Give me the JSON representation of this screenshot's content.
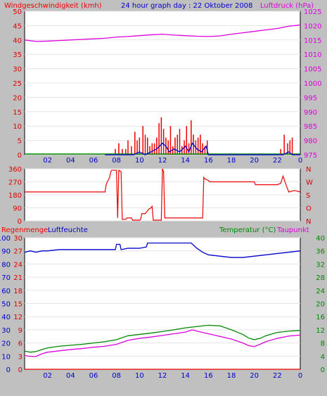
{
  "header": {
    "left_title": "Windgeschwindigkeit (kmh)",
    "center_title": "24 hour graph day : 22 Oktober 2008",
    "right_title": "Luftdruck (hPa)"
  },
  "panel3_labels": {
    "rain": "Regenmenge",
    "humidity": "Luftfeuchte",
    "temperature": "Temperatur (°C)",
    "dewpoint": "Taupunkt"
  },
  "colors": {
    "background": "#c0c0c0",
    "plot_bg": "#ffffff",
    "wind": "#ee0000",
    "gust_avg": "#0000cc",
    "pressure": "#dd00dd",
    "humidity": "#0000cc",
    "temperature": "#008800",
    "dewpoint": "#dd00dd",
    "rain": "#ee0000"
  },
  "chart_data": [
    {
      "type": "bar",
      "name": "wind-pressure",
      "x_ticks": [
        "02",
        "04",
        "06",
        "08",
        "10",
        "12",
        "14",
        "16",
        "18",
        "20",
        "22",
        "0"
      ],
      "x_range": [
        0,
        24
      ],
      "left_axis": {
        "label": "Windgeschwindigkeit (kmh)",
        "range": [
          0,
          50
        ],
        "ticks": [
          0,
          5,
          10,
          15,
          20,
          25,
          30,
          35,
          40,
          45,
          50
        ]
      },
      "right_axis": {
        "label": "Luftdruck (hPa)",
        "range": [
          975,
          1025
        ],
        "ticks": [
          975,
          980,
          985,
          990,
          995,
          1000,
          1005,
          1010,
          1015,
          1020,
          1025
        ]
      },
      "wind_gust": {
        "x": [
          7.9,
          8.2,
          8.5,
          8.8,
          9.0,
          9.3,
          9.6,
          9.8,
          10.0,
          10.3,
          10.5,
          10.7,
          10.9,
          11.1,
          11.3,
          11.5,
          11.7,
          11.9,
          12.1,
          12.3,
          12.5,
          12.7,
          12.9,
          13.1,
          13.3,
          13.5,
          13.7,
          13.9,
          14.1,
          14.3,
          14.5,
          14.7,
          14.9,
          15.1,
          15.3,
          15.5,
          15.7,
          15.9,
          22.3,
          22.6,
          22.9,
          23.1,
          23.3
        ],
        "values": [
          2,
          4,
          2,
          2,
          5,
          3,
          8,
          5,
          6,
          10,
          7,
          6,
          3,
          4,
          4,
          6,
          11,
          13,
          9,
          6,
          5,
          10,
          3,
          6,
          7,
          9,
          3,
          5,
          10,
          4,
          12,
          7,
          5,
          6,
          7,
          4,
          3,
          5,
          2,
          7,
          4,
          5,
          6
        ]
      },
      "wind_average": {
        "x": [
          7.0,
          9.5,
          10.0,
          10.5,
          11.0,
          11.5,
          12.0,
          12.3,
          12.6,
          13.0,
          13.5,
          14.0,
          14.3,
          14.6,
          15.0,
          15.4,
          15.8,
          16.0,
          22.5,
          23.0,
          23.3,
          24.0
        ],
        "values": [
          0,
          0,
          1,
          0,
          1,
          2,
          4,
          3,
          1,
          2,
          1,
          3,
          1,
          4,
          2,
          1,
          3,
          0,
          0,
          1,
          0,
          0
        ]
      },
      "pressure": {
        "x": [
          0,
          1,
          2,
          3,
          4,
          5,
          6,
          7,
          8,
          9,
          10,
          11,
          12,
          13,
          14,
          15,
          16,
          17,
          18,
          19,
          20,
          21,
          22,
          23,
          24
        ],
        "values": [
          1015,
          1014.5,
          1014.6,
          1014.8,
          1015,
          1015.2,
          1015.4,
          1015.6,
          1016,
          1016.2,
          1016.5,
          1016.8,
          1017,
          1016.7,
          1016.5,
          1016.3,
          1016.2,
          1016.4,
          1017,
          1017.5,
          1018,
          1018.5,
          1019,
          1019.8,
          1020.2
        ]
      }
    },
    {
      "type": "line",
      "name": "wind-direction",
      "x_range": [
        0,
        24
      ],
      "left_axis": {
        "range": [
          0,
          360
        ],
        "ticks": [
          0,
          90,
          180,
          270,
          360
        ]
      },
      "right_axis": {
        "ticks": [
          "N",
          "O",
          "S",
          "W",
          "N"
        ]
      },
      "direction": {
        "x": [
          0,
          7.0,
          7.1,
          7.2,
          7.4,
          7.5,
          7.6,
          8.0,
          8.1,
          8.2,
          8.4,
          8.5,
          8.8,
          8.9,
          9.3,
          9.4,
          10.0,
          10.1,
          10.2,
          10.5,
          10.8,
          11.0,
          11.1,
          11.2,
          11.9,
          12.0,
          12.1,
          12.2,
          12.3,
          15.5,
          15.6,
          15.7,
          16.0,
          16.1,
          20.0,
          20.1,
          22.0,
          22.3,
          22.5,
          22.8,
          23.0,
          23.5,
          24.0
        ],
        "values": [
          200,
          200,
          250,
          270,
          300,
          340,
          350,
          350,
          20,
          350,
          340,
          10,
          10,
          20,
          20,
          5,
          5,
          10,
          50,
          50,
          80,
          90,
          100,
          5,
          5,
          360,
          340,
          20,
          20,
          20,
          300,
          290,
          280,
          270,
          270,
          250,
          250,
          260,
          310,
          240,
          200,
          210,
          200
        ]
      }
    },
    {
      "type": "line",
      "name": "humidity-temperature",
      "x_range": [
        0,
        24
      ],
      "axis_rain": {
        "label": "Regenmenge",
        "range": [
          0,
          30
        ],
        "ticks": [
          0,
          3,
          6,
          9,
          12,
          15,
          18,
          21,
          24,
          27,
          30
        ]
      },
      "axis_humidity": {
        "label": "Luftfeuchte",
        "range": [
          0,
          100
        ],
        "ticks": [
          0,
          10,
          20,
          30,
          40,
          50,
          60,
          70,
          80,
          90,
          100
        ]
      },
      "axis_temperature": {
        "label": "Temperatur (°C) Taupunkt",
        "range": [
          0,
          40
        ],
        "ticks": [
          0,
          4,
          8,
          12,
          16,
          20,
          24,
          28,
          32,
          36,
          40
        ]
      },
      "rain": {
        "x": [
          0,
          24
        ],
        "values": [
          0,
          0
        ]
      },
      "humidity": {
        "x": [
          0,
          0.5,
          1.0,
          1.5,
          2.0,
          3.0,
          4.0,
          5.0,
          6.0,
          7.0,
          7.9,
          8.0,
          8.3,
          8.4,
          9.0,
          10.0,
          10.6,
          10.7,
          11.0,
          12.0,
          13.0,
          14.0,
          14.5,
          15.0,
          15.5,
          16.0,
          17.0,
          18.0,
          19.0,
          20.0,
          21.0,
          22.0,
          23.0,
          24.0
        ],
        "values": [
          89,
          90,
          89,
          90,
          90,
          91,
          91,
          91,
          91,
          91,
          91,
          95,
          95,
          91,
          92,
          92,
          93,
          96,
          96,
          96,
          96,
          96,
          96,
          92,
          89,
          87,
          86,
          85,
          85,
          86,
          87,
          88,
          89,
          90
        ]
      },
      "temperature": {
        "x": [
          0,
          0.5,
          1.0,
          1.5,
          2.0,
          3.0,
          4.0,
          5.0,
          6.0,
          7.0,
          8.0,
          9.0,
          10.0,
          11.0,
          12.0,
          13.0,
          14.0,
          15.0,
          16.0,
          17.0,
          18.0,
          19.0,
          19.5,
          20.0,
          20.5,
          21.0,
          22.0,
          23.0,
          24.0
        ],
        "values": [
          5.5,
          5.2,
          5.4,
          6.0,
          6.5,
          7.0,
          7.3,
          7.6,
          8.0,
          8.4,
          9.0,
          10.2,
          10.6,
          11.0,
          11.5,
          12.0,
          12.6,
          13.0,
          13.4,
          13.2,
          12.0,
          10.6,
          9.5,
          9.0,
          9.4,
          10.2,
          11.2,
          11.6,
          11.8
        ]
      },
      "dewpoint": {
        "x": [
          0,
          0.5,
          1.0,
          1.5,
          2.0,
          3.0,
          4.0,
          5.0,
          6.0,
          7.0,
          8.0,
          9.0,
          10.0,
          11.0,
          12.0,
          13.0,
          14.0,
          14.6,
          15.0,
          16.0,
          17.0,
          18.0,
          19.0,
          19.5,
          20.0,
          20.5,
          21.0,
          22.0,
          23.0,
          24.0
        ],
        "values": [
          4.2,
          3.9,
          3.9,
          4.7,
          5.2,
          5.6,
          6.0,
          6.3,
          6.7,
          7.0,
          7.6,
          8.8,
          9.4,
          9.8,
          10.3,
          10.8,
          11.3,
          12.0,
          11.6,
          10.8,
          10.0,
          9.2,
          8.0,
          7.2,
          6.9,
          7.6,
          8.4,
          9.4,
          10.1,
          10.4
        ]
      }
    }
  ]
}
